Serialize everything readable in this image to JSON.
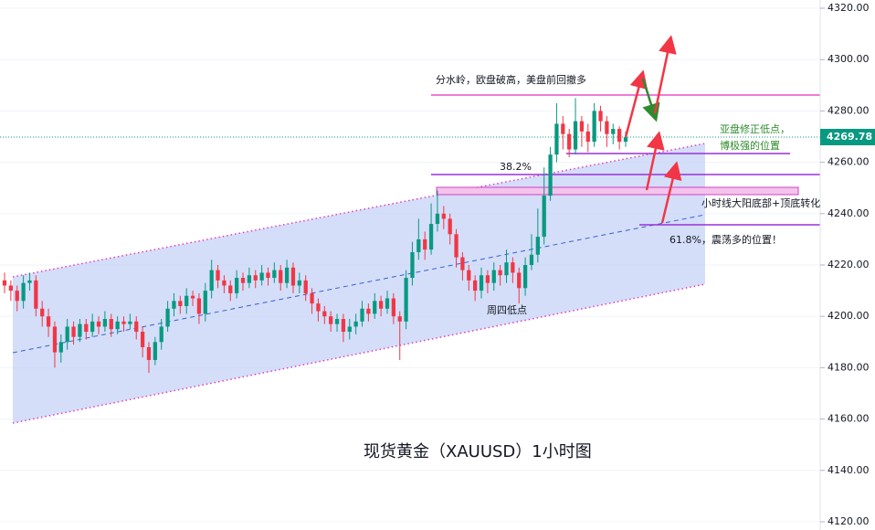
{
  "chart_data": {
    "type": "candlestick",
    "title": "现货黄金（XAUUSD）1小时图",
    "annotations": [
      "分水岭，欧盘破高，美盘前回撤多",
      "38.2%",
      "亚盘修正低点，",
      "博极强的位置",
      "小时线大阳底部+顶底转化",
      "61.8%，震荡多的位置！",
      "周四低点"
    ],
    "up_color": "#089981",
    "down_color": "#f23645",
    "grid": true,
    "ylim": [
      4120,
      4320
    ],
    "yticks": [
      {
        "value": 4120,
        "label": "4120.00"
      },
      {
        "value": 4140,
        "label": "4140.00"
      },
      {
        "value": 4160,
        "label": "4160.00"
      },
      {
        "value": 4180,
        "label": "4180.00"
      },
      {
        "value": 4200,
        "label": "4200.00"
      },
      {
        "value": 4220,
        "label": "4220.00"
      },
      {
        "value": 4240,
        "label": "4240.00"
      },
      {
        "value": 4260,
        "label": "4260.00"
      },
      {
        "value": 4280,
        "label": "4280.00"
      },
      {
        "value": 4300,
        "label": "4300.00"
      },
      {
        "value": 4320,
        "label": "4320.00"
      }
    ],
    "open": [
      4214,
      4212,
      4210,
      4206,
      4213,
      4214,
      4203,
      4200,
      4196,
      4186,
      4190,
      4196,
      4192,
      4197,
      4194,
      4198,
      4196,
      4199,
      4195,
      4198,
      4197,
      4198,
      4194,
      4188,
      4183,
      4190,
      4196,
      4203,
      4206,
      4204,
      4208,
      4207,
      4201,
      4210,
      4218,
      4214,
      4212,
      4209,
      4215,
      4213,
      4216,
      4214,
      4217,
      4215,
      4218,
      4213,
      4219,
      4212,
      4214,
      4209,
      4205,
      4202,
      4200,
      4197,
      4199,
      4194,
      4196,
      4198,
      4203,
      4201,
      4206,
      4203,
      4207,
      4200,
      4198,
      4215,
      4225,
      4230,
      4226,
      4236,
      4240,
      4238,
      4232,
      4223,
      4218,
      4214,
      4210,
      4216,
      4213,
      4218,
      4216,
      4221,
      4217,
      4211,
      4220,
      4224,
      4231,
      4247,
      4263,
      4275,
      4271,
      4265,
      4276,
      4272,
      4268,
      4280,
      4276,
      4271,
      4273,
      4268
    ],
    "high": [
      4217,
      4214,
      4212,
      4216,
      4217,
      4216,
      4206,
      4203,
      4198,
      4193,
      4199,
      4198,
      4199,
      4199,
      4201,
      4200,
      4202,
      4201,
      4200,
      4200,
      4201,
      4200,
      4196,
      4190,
      4192,
      4199,
      4206,
      4209,
      4208,
      4211,
      4210,
      4209,
      4213,
      4222,
      4220,
      4216,
      4214,
      4218,
      4217,
      4219,
      4218,
      4220,
      4219,
      4221,
      4220,
      4222,
      4221,
      4217,
      4216,
      4211,
      4207,
      4204,
      4202,
      4201,
      4201,
      4199,
      4201,
      4206,
      4205,
      4209,
      4208,
      4210,
      4209,
      4202,
      4218,
      4229,
      4238,
      4233,
      4244,
      4249,
      4243,
      4240,
      4234,
      4225,
      4220,
      4216,
      4219,
      4218,
      4221,
      4220,
      4226,
      4223,
      4219,
      4223,
      4232,
      4242,
      4258,
      4266,
      4283,
      4278,
      4273,
      4285,
      4278,
      4275,
      4283,
      4282,
      4278,
      4275,
      4274,
      4272
    ],
    "low": [
      4209,
      4206,
      4202,
      4203,
      4210,
      4200,
      4196,
      4192,
      4180,
      4182,
      4187,
      4189,
      4190,
      4191,
      4192,
      4193,
      4194,
      4192,
      4193,
      4194,
      4195,
      4191,
      4184,
      4178,
      4181,
      4187,
      4194,
      4200,
      4201,
      4201,
      4204,
      4197,
      4198,
      4207,
      4211,
      4209,
      4206,
      4207,
      4210,
      4211,
      4211,
      4212,
      4212,
      4213,
      4210,
      4211,
      4209,
      4209,
      4206,
      4201,
      4198,
      4197,
      4194,
      4194,
      4190,
      4191,
      4193,
      4196,
      4198,
      4199,
      4200,
      4201,
      4197,
      4183,
      4195,
      4212,
      4222,
      4222,
      4224,
      4233,
      4234,
      4228,
      4219,
      4214,
      4210,
      4206,
      4207,
      4209,
      4210,
      4212,
      4213,
      4213,
      4205,
      4208,
      4218,
      4221,
      4228,
      4245,
      4260,
      4265,
      4262,
      4263,
      4266,
      4264,
      4266,
      4272,
      4266,
      4267,
      4265,
      4266
    ],
    "close": [
      4212,
      4210,
      4206,
      4213,
      4214,
      4203,
      4200,
      4196,
      4186,
      4190,
      4196,
      4192,
      4197,
      4194,
      4198,
      4196,
      4199,
      4195,
      4198,
      4197,
      4198,
      4194,
      4188,
      4183,
      4190,
      4196,
      4203,
      4206,
      4204,
      4208,
      4207,
      4201,
      4210,
      4218,
      4214,
      4212,
      4209,
      4215,
      4213,
      4216,
      4214,
      4217,
      4215,
      4218,
      4213,
      4219,
      4212,
      4214,
      4209,
      4205,
      4202,
      4200,
      4197,
      4199,
      4194,
      4196,
      4198,
      4203,
      4201,
      4206,
      4203,
      4207,
      4200,
      4198,
      4215,
      4225,
      4230,
      4226,
      4236,
      4240,
      4238,
      4232,
      4223,
      4218,
      4214,
      4210,
      4216,
      4213,
      4218,
      4216,
      4221,
      4217,
      4211,
      4220,
      4224,
      4231,
      4247,
      4263,
      4275,
      4271,
      4265,
      4276,
      4272,
      4268,
      4280,
      4276,
      4271,
      4273,
      4268,
      4269.78
    ]
  }
}
